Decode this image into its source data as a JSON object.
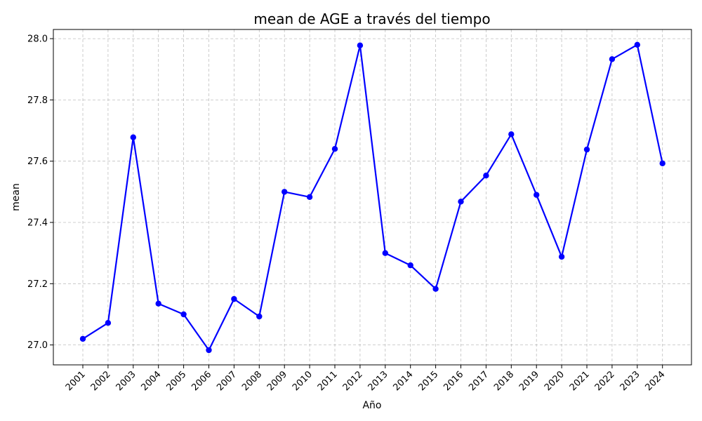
{
  "chart_data": {
    "type": "line",
    "title": "mean de AGE a través del tiempo",
    "xlabel": "Año",
    "ylabel": "mean",
    "x": [
      "2001",
      "2002",
      "2003",
      "2004",
      "2005",
      "2006",
      "2007",
      "2008",
      "2009",
      "2010",
      "2011",
      "2012",
      "2013",
      "2014",
      "2015",
      "2016",
      "2017",
      "2018",
      "2019",
      "2020",
      "2021",
      "2022",
      "2023",
      "2024"
    ],
    "series": [
      {
        "values": [
          27.02,
          27.072,
          27.678,
          27.135,
          27.1,
          26.983,
          27.15,
          27.093,
          27.5,
          27.483,
          27.64,
          27.978,
          27.3,
          27.26,
          27.183,
          27.468,
          27.553,
          27.688,
          27.49,
          27.288,
          27.638,
          27.933,
          27.98,
          27.593
        ],
        "color": "#0000ff"
      }
    ],
    "ylim": [
      26.935,
      28.03
    ],
    "yticks": [
      "27.0",
      "27.2",
      "27.4",
      "27.6",
      "27.8",
      "28.0"
    ],
    "grid": true
  }
}
